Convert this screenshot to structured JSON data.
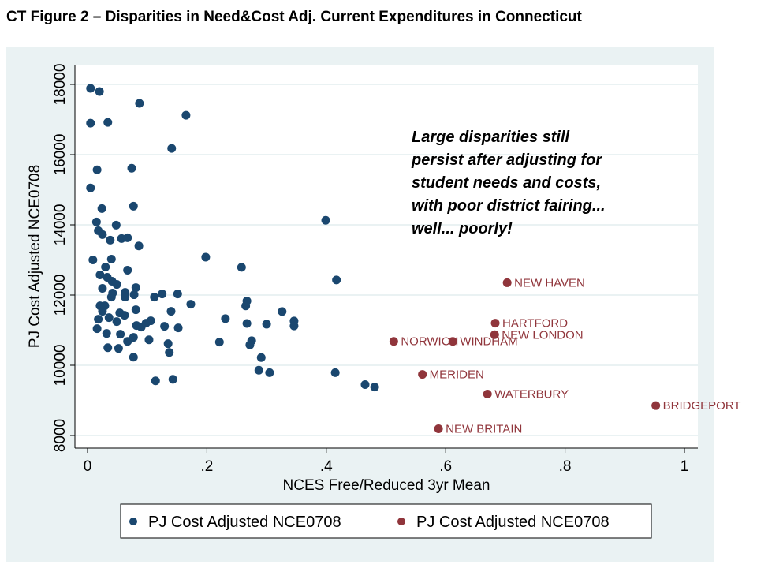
{
  "chart_data": {
    "type": "scatter",
    "title": "CT Figure 2 – Disparities in Need&Cost Adj. Current Expenditures in Connecticut",
    "xlabel": "NCES Free/Reduced 3yr Mean",
    "ylabel": "PJ Cost Adjusted NCE0708",
    "xlim": [
      0,
      1
    ],
    "ylim": [
      8000,
      18000
    ],
    "x_ticks": [
      0,
      0.2,
      0.4,
      0.6,
      0.8,
      1
    ],
    "x_tick_labels": [
      "0",
      ".2",
      ".4",
      ".6",
      ".8",
      "1"
    ],
    "y_ticks": [
      8000,
      10000,
      12000,
      14000,
      16000,
      18000
    ],
    "y_tick_labels": [
      "8000",
      "10000",
      "12000",
      "14000",
      "16000",
      "18000"
    ],
    "grid": "horizontal",
    "legend_position": "bottom",
    "annotation": [
      "Large disparities still",
      "persist after adjusting for",
      "student needs and costs,",
      "with poor district fairing...",
      "well... poorly!"
    ],
    "colors": {
      "background": "#eaf2f3",
      "plot": "#ffffff",
      "series1": "#1a476f",
      "series2": "#90353b"
    },
    "series": [
      {
        "name": "PJ Cost Adjusted NCE0708",
        "points": [
          [
            0.005,
            17887
          ],
          [
            0.02,
            17797
          ],
          [
            0.087,
            17460
          ],
          [
            0.165,
            17122
          ],
          [
            0.005,
            16897
          ],
          [
            0.034,
            16919
          ],
          [
            0.141,
            16176
          ],
          [
            0.016,
            15568
          ],
          [
            0.074,
            15613
          ],
          [
            0.005,
            15050
          ],
          [
            0.024,
            14464
          ],
          [
            0.077,
            14532
          ],
          [
            0.015,
            14082
          ],
          [
            0.048,
            13992
          ],
          [
            0.018,
            13834
          ],
          [
            0.025,
            13721
          ],
          [
            0.038,
            13564
          ],
          [
            0.057,
            13609
          ],
          [
            0.067,
            13631
          ],
          [
            0.086,
            13400
          ],
          [
            0.009,
            13000
          ],
          [
            0.04,
            13023
          ],
          [
            0.198,
            13080
          ],
          [
            0.03,
            12798
          ],
          [
            0.067,
            12708
          ],
          [
            0.021,
            12573
          ],
          [
            0.033,
            12505
          ],
          [
            0.041,
            12393
          ],
          [
            0.049,
            12302
          ],
          [
            0.025,
            12190
          ],
          [
            0.081,
            12212
          ],
          [
            0.042,
            12055
          ],
          [
            0.04,
            11942
          ],
          [
            0.063,
            12077
          ],
          [
            0.063,
            11942
          ],
          [
            0.078,
            12010
          ],
          [
            0.112,
            11942
          ],
          [
            0.125,
            12032
          ],
          [
            0.151,
            12032
          ],
          [
            0.021,
            11694
          ],
          [
            0.029,
            11694
          ],
          [
            0.025,
            11537
          ],
          [
            0.173,
            11740
          ],
          [
            0.081,
            11582
          ],
          [
            0.14,
            11537
          ],
          [
            0.018,
            11312
          ],
          [
            0.036,
            11357
          ],
          [
            0.049,
            11244
          ],
          [
            0.054,
            11492
          ],
          [
            0.062,
            11424
          ],
          [
            0.082,
            11132
          ],
          [
            0.09,
            11087
          ],
          [
            0.098,
            11199
          ],
          [
            0.106,
            11267
          ],
          [
            0.129,
            11109
          ],
          [
            0.152,
            11064
          ],
          [
            0.016,
            11042
          ],
          [
            0.032,
            10906
          ],
          [
            0.055,
            10884
          ],
          [
            0.077,
            10794
          ],
          [
            0.067,
            10681
          ],
          [
            0.103,
            10726
          ],
          [
            0.034,
            10501
          ],
          [
            0.052,
            10479
          ],
          [
            0.135,
            10614
          ],
          [
            0.137,
            10366
          ],
          [
            0.077,
            10231
          ],
          [
            0.114,
            9556
          ],
          [
            0.143,
            9600
          ],
          [
            0.399,
            14130
          ],
          [
            0.258,
            12790
          ],
          [
            0.417,
            12430
          ],
          [
            0.267,
            11830
          ],
          [
            0.265,
            11690
          ],
          [
            0.231,
            11330
          ],
          [
            0.267,
            11190
          ],
          [
            0.3,
            11170
          ],
          [
            0.326,
            11530
          ],
          [
            0.346,
            11260
          ],
          [
            0.346,
            11120
          ],
          [
            0.221,
            10660
          ],
          [
            0.275,
            10700
          ],
          [
            0.272,
            10580
          ],
          [
            0.291,
            10220
          ],
          [
            0.287,
            9860
          ],
          [
            0.305,
            9790
          ],
          [
            0.415,
            9790
          ],
          [
            0.465,
            9450
          ],
          [
            0.481,
            9380
          ]
        ]
      },
      {
        "name": "PJ Cost Adjusted NCE0708",
        "points": [
          {
            "x": 0.703,
            "y": 12350,
            "label": "NEW HAVEN"
          },
          {
            "x": 0.683,
            "y": 11200,
            "label": "HARTFORD"
          },
          {
            "x": 0.682,
            "y": 10870,
            "label": "NEW LONDON"
          },
          {
            "x": 0.513,
            "y": 10680,
            "label": "NORWICH"
          },
          {
            "x": 0.612,
            "y": 10680,
            "label": "WINDHAM"
          },
          {
            "x": 0.561,
            "y": 9740,
            "label": "MERIDEN"
          },
          {
            "x": 0.67,
            "y": 9180,
            "label": "WATERBURY"
          },
          {
            "x": 0.952,
            "y": 8850,
            "label": "BRIDGEPORT"
          },
          {
            "x": 0.588,
            "y": 8190,
            "label": "NEW BRITAIN"
          }
        ]
      }
    ]
  }
}
